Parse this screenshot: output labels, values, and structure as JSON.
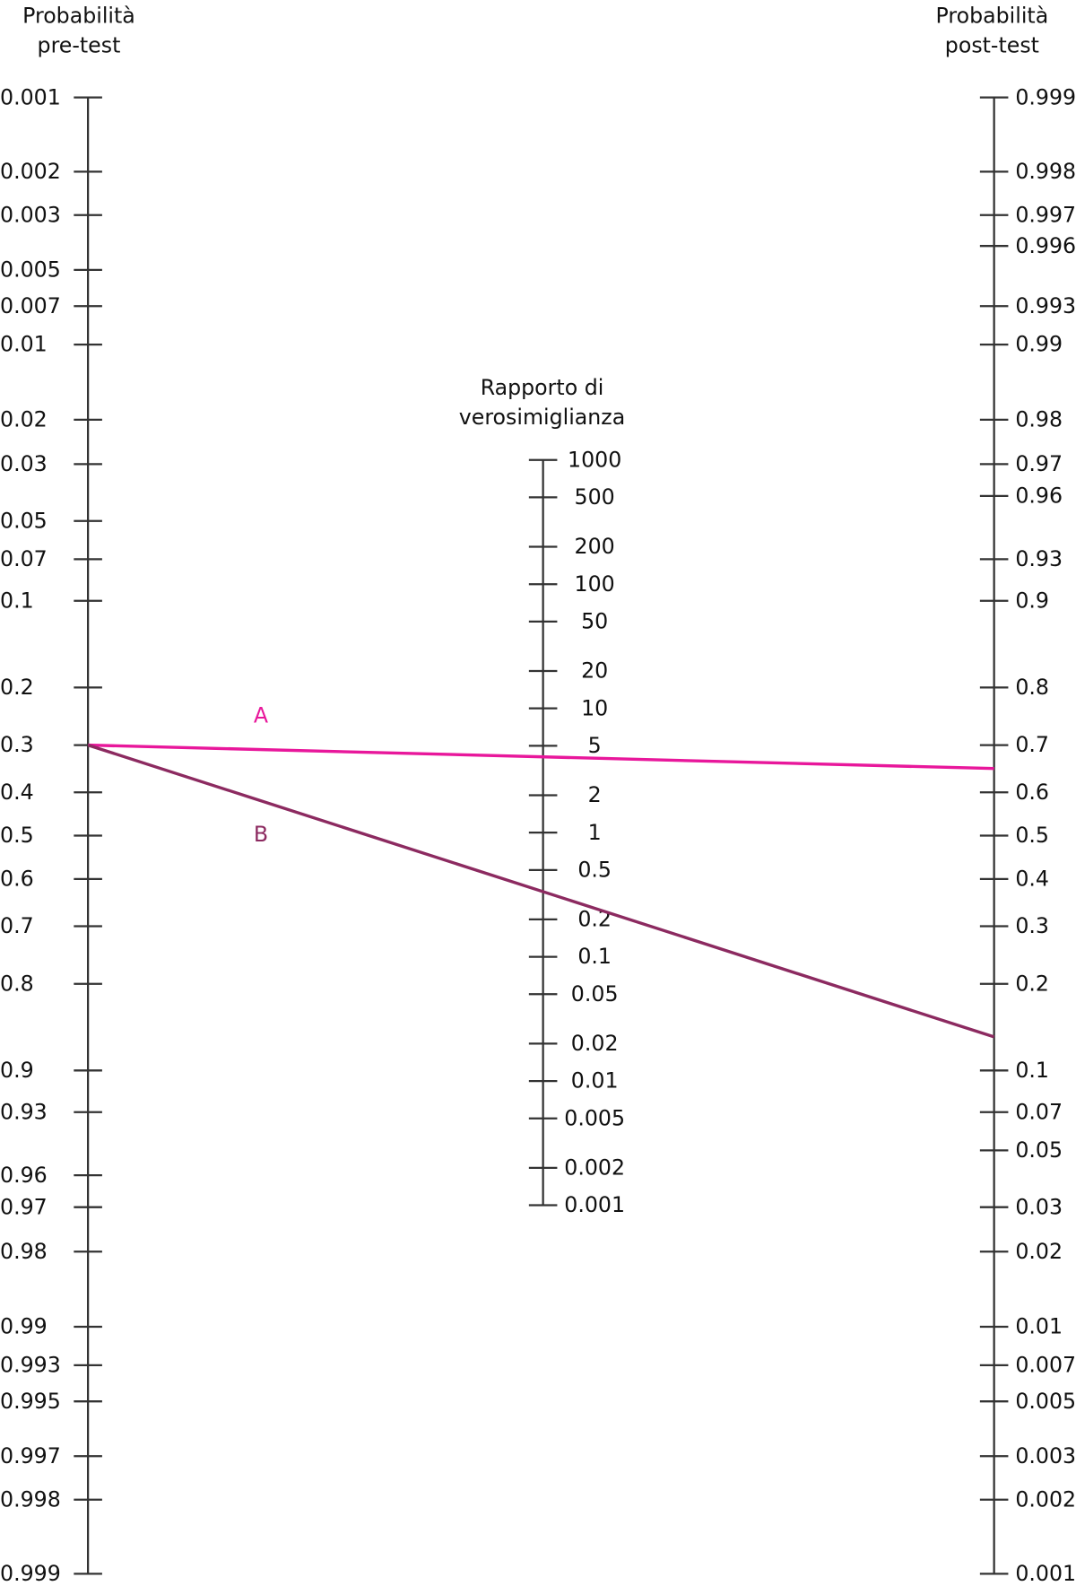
{
  "pretest_axis": {
    "title": [
      "Probabilità",
      "pre-test"
    ],
    "ticks": [
      0.001,
      0.002,
      0.003,
      0.005,
      0.007,
      0.01,
      0.02,
      0.03,
      0.05,
      0.07,
      0.1,
      0.2,
      0.3,
      0.4,
      0.5,
      0.6,
      0.7,
      0.8,
      0.9,
      0.93,
      0.96,
      0.97,
      0.98,
      0.99,
      0.993,
      0.995,
      0.997,
      0.998,
      0.999
    ]
  },
  "lr_axis": {
    "title": [
      "Rapporto di",
      "verosimiglianza"
    ],
    "ticks": [
      1000,
      500,
      200,
      100,
      50,
      20,
      10,
      5,
      2,
      1,
      0.5,
      0.2,
      0.1,
      0.05,
      0.02,
      0.01,
      0.005,
      0.002,
      0.001
    ]
  },
  "posttest_axis": {
    "title": [
      "Probabilità",
      "post-test"
    ],
    "ticks": [
      0.999,
      0.998,
      0.997,
      0.996,
      0.993,
      0.99,
      0.98,
      0.97,
      0.96,
      0.93,
      0.9,
      0.8,
      0.7,
      0.6,
      0.5,
      0.4,
      0.3,
      0.2,
      0.1,
      0.07,
      0.05,
      0.03,
      0.02,
      0.01,
      0.007,
      0.005,
      0.003,
      0.002,
      0.001
    ]
  },
  "lines": [
    {
      "label": "A",
      "color": "#e8179b",
      "pretest": 0.3,
      "posttest": 0.652
    },
    {
      "label": "B",
      "color": "#8c2a60",
      "pretest": 0.3,
      "posttest": 0.132
    }
  ]
}
